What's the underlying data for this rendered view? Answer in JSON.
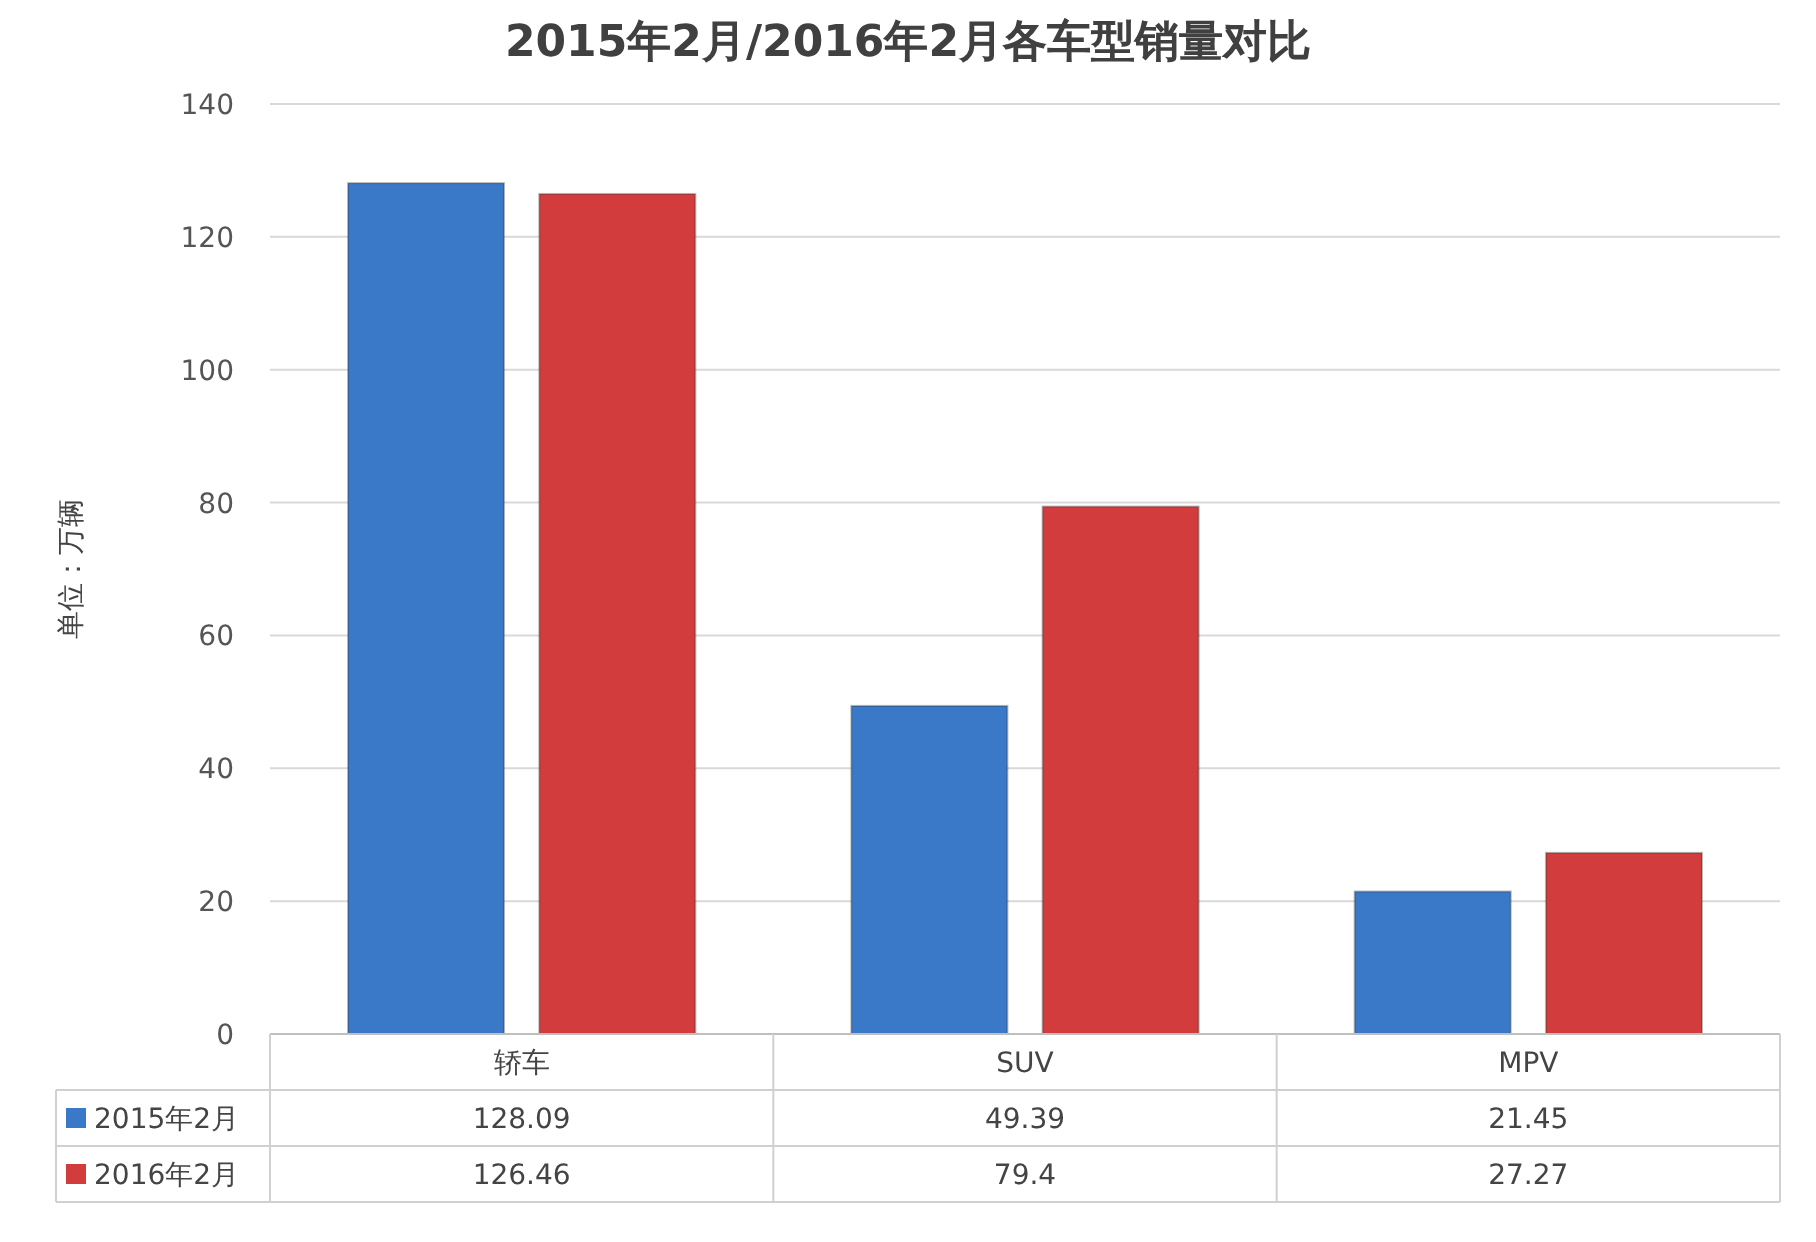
{
  "chart_data": {
    "type": "bar",
    "title": "2015年2月/2016年2月各车型销量对比",
    "ylabel": "单位：万辆",
    "categories": [
      "轿车",
      "SUV",
      "MPV"
    ],
    "series": [
      {
        "name": "2015年2月",
        "color": "#3a78c8",
        "values": [
          128.09,
          49.39,
          21.45
        ]
      },
      {
        "name": "2016年2月",
        "color": "#d23c3c",
        "values": [
          126.46,
          79.4,
          27.27
        ]
      }
    ],
    "ylim": [
      0,
      140
    ],
    "yticks": [
      0,
      20,
      40,
      60,
      80,
      100,
      120,
      140
    ],
    "grid": "y",
    "legend": "bottom",
    "data_labels": true
  }
}
